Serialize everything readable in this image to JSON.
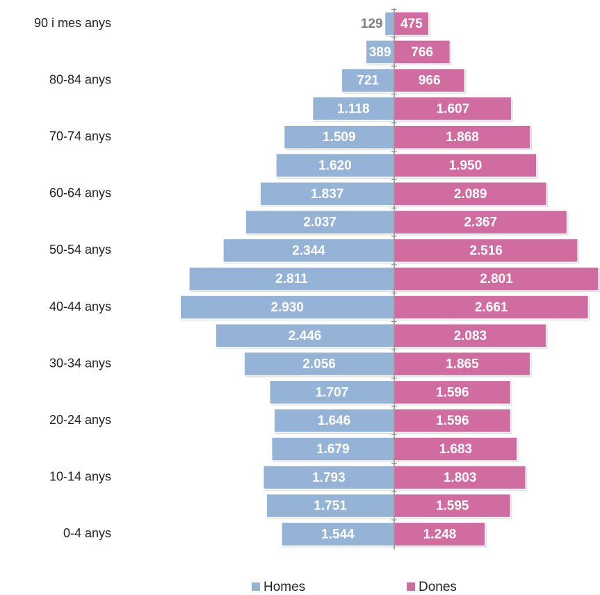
{
  "chart_data": {
    "type": "pyramid",
    "categories": [
      "90 i mes anys",
      null,
      "80-84 anys",
      null,
      "70-74 anys",
      null,
      "60-64 anys",
      null,
      "50-54 anys",
      null,
      "40-44 anys",
      null,
      "30-34 anys",
      null,
      "20-24 anys",
      null,
      "10-14 anys",
      null,
      "0-4 anys"
    ],
    "series": [
      {
        "name": "Homes",
        "color": "#95b3d7",
        "side": "left",
        "values": [
          129,
          389,
          721,
          1118,
          1509,
          1620,
          1837,
          2037,
          2344,
          2811,
          2930,
          2446,
          2056,
          1707,
          1646,
          1679,
          1793,
          1751,
          1544
        ],
        "value_labels": [
          "129",
          "389",
          "721",
          "1.118",
          "1.509",
          "1.620",
          "1.837",
          "2.037",
          "2.344",
          "2.811",
          "2.930",
          "2.446",
          "2.056",
          "1.707",
          "1.646",
          "1.679",
          "1.793",
          "1.751",
          "1.544"
        ]
      },
      {
        "name": "Dones",
        "color": "#d06ca0",
        "side": "right",
        "values": [
          475,
          766,
          966,
          1607,
          1868,
          1950,
          2089,
          2367,
          2516,
          2801,
          2661,
          2083,
          1865,
          1596,
          1596,
          1683,
          1803,
          1595,
          1248
        ],
        "value_labels": [
          "475",
          "766",
          "966",
          "1.607",
          "1.868",
          "1.950",
          "2.089",
          "2.367",
          "2.516",
          "2.801",
          "2.661",
          "2.083",
          "1.865",
          "1.596",
          "1.596",
          "1.683",
          "1.803",
          "1.595",
          "1.248"
        ]
      }
    ],
    "legend": "bottom"
  }
}
